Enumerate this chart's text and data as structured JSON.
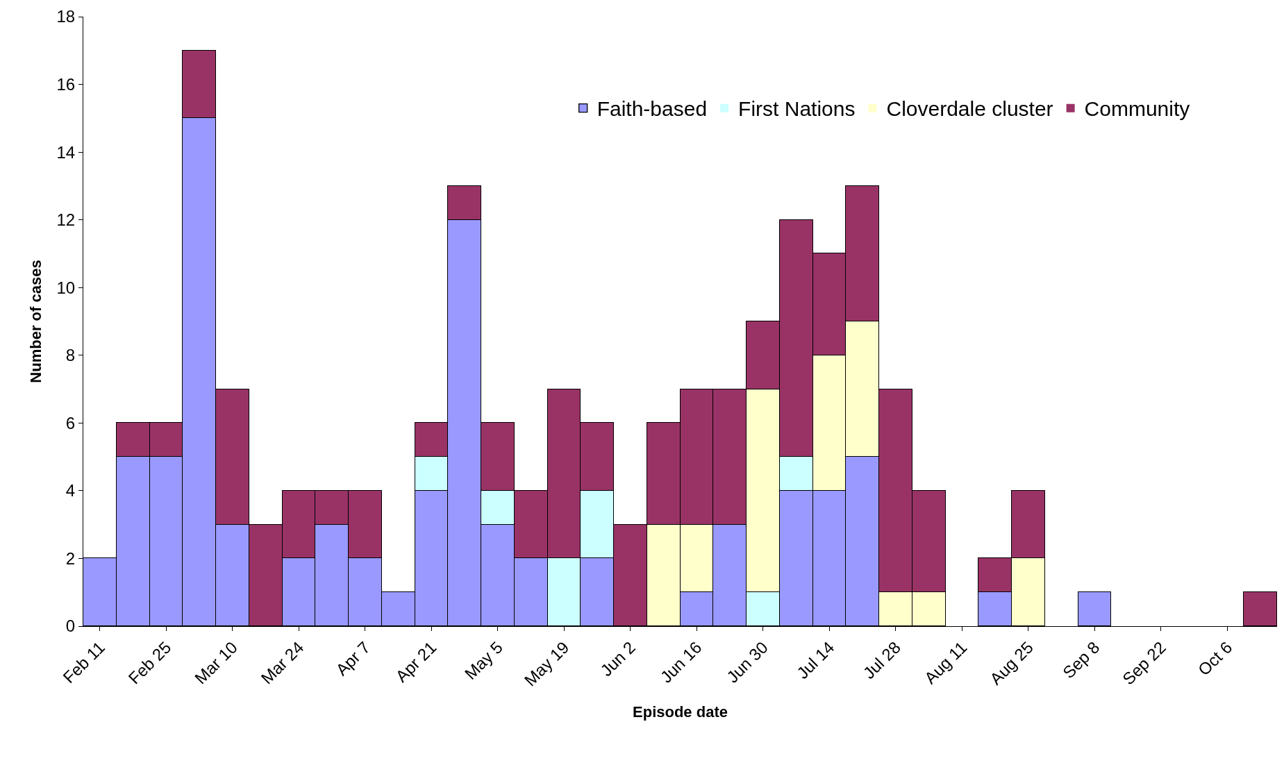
{
  "chart_data": {
    "type": "bar",
    "stacked": true,
    "xlabel": "Episode date",
    "ylabel": "Number of cases",
    "categories": [
      "Feb 11",
      null,
      "Feb 25",
      null,
      "Mar 10",
      null,
      "Mar 24",
      null,
      "Apr 7",
      null,
      "Apr 21",
      null,
      "May 5",
      null,
      "May 19",
      null,
      "Jun 2",
      null,
      "Jun 16",
      null,
      "Jun 30",
      null,
      "Jul 14",
      null,
      "Jul 28",
      null,
      "Aug 11",
      null,
      "Aug 25",
      null,
      "Sep 8",
      null,
      "Sep 22",
      null,
      "Oct 6",
      null
    ],
    "series": [
      {
        "name": "Faith-based",
        "color": "#9999ff",
        "values": [
          2,
          5,
          5,
          15,
          3,
          0,
          2,
          3,
          2,
          1,
          4,
          12,
          3,
          2,
          0,
          2,
          0,
          0,
          1,
          3,
          0,
          4,
          4,
          5,
          0,
          0,
          0,
          1,
          0,
          0,
          1,
          0,
          0,
          0,
          0,
          0
        ]
      },
      {
        "name": "First Nations",
        "color": "#ccffff",
        "values": [
          0,
          0,
          0,
          0,
          0,
          0,
          0,
          0,
          0,
          0,
          1,
          0,
          1,
          0,
          2,
          2,
          0,
          0,
          0,
          0,
          1,
          1,
          0,
          0,
          0,
          0,
          0,
          0,
          0,
          0,
          0,
          0,
          0,
          0,
          0,
          0
        ]
      },
      {
        "name": "Cloverdale cluster",
        "color": "#ffffcc",
        "values": [
          0,
          0,
          0,
          0,
          0,
          0,
          0,
          0,
          0,
          0,
          0,
          0,
          0,
          0,
          0,
          0,
          0,
          3,
          2,
          0,
          6,
          0,
          4,
          4,
          1,
          1,
          0,
          0,
          2,
          0,
          0,
          0,
          0,
          0,
          0,
          0
        ]
      },
      {
        "name": "Community",
        "color": "#993366",
        "values": [
          0,
          1,
          1,
          2,
          4,
          3,
          2,
          1,
          2,
          0,
          1,
          1,
          2,
          2,
          5,
          2,
          3,
          3,
          4,
          4,
          2,
          7,
          3,
          4,
          6,
          3,
          0,
          1,
          2,
          0,
          0,
          0,
          0,
          0,
          0,
          1
        ]
      }
    ],
    "ylim": [
      0,
      18
    ],
    "yticks": [
      0,
      2,
      4,
      6,
      8,
      10,
      12,
      14,
      16,
      18
    ],
    "grid": false,
    "legend": "top right"
  }
}
